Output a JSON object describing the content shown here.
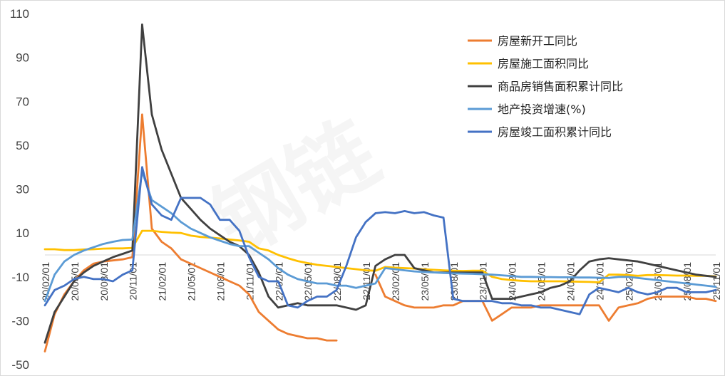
{
  "chart_data": {
    "type": "line",
    "title": "",
    "xlabel": "",
    "ylabel": "",
    "ylim": [
      -50,
      110
    ],
    "yticks": [
      -50,
      -30,
      -10,
      10,
      30,
      50,
      70,
      90,
      110
    ],
    "grid": false,
    "legend_position": "top-right",
    "x": [
      "20/02",
      "20/03",
      "20/04",
      "20/05",
      "20/06",
      "20/07",
      "20/08",
      "20/09",
      "20/10",
      "20/11",
      "20/12",
      "21/01",
      "21/02",
      "21/03",
      "21/04",
      "21/05",
      "21/06",
      "21/07",
      "21/08",
      "21/09",
      "21/10",
      "21/11",
      "21/12",
      "22/01",
      "22/02",
      "22/03",
      "22/04",
      "22/05",
      "22/06",
      "22/07",
      "22/08",
      "22/09",
      "22/10",
      "22/11",
      "22/12",
      "23/01",
      "23/02",
      "23/03",
      "23/04",
      "23/05",
      "23/06",
      "23/07",
      "23/08",
      "23/09",
      "23/10",
      "23/11",
      "23/12",
      "24/01",
      "24/02",
      "24/03",
      "24/04",
      "24/05",
      "24/06",
      "24/07",
      "24/08",
      "24/09",
      "24/10",
      "24/11",
      "24/12",
      "25/01",
      "25/02",
      "25/03",
      "25/04",
      "25/05",
      "25/06",
      "25/07",
      "25/08",
      "25/09",
      "25/10",
      "25/11"
    ],
    "x_tick_labels": [
      "20/02/01",
      "20/05/01",
      "20/08/01",
      "20/11/01",
      "21/02/01",
      "21/05/01",
      "21/08/01",
      "21/11/01",
      "22/02/01",
      "22/05/01",
      "22/08/01",
      "22/11/01",
      "23/02/01",
      "23/05/01",
      "23/08/01",
      "23/11/01",
      "24/02/01",
      "24/05/01",
      "24/08/01",
      "24/11/01",
      "25/02/01",
      "25/05/01",
      "25/08/01",
      "25/11/01"
    ],
    "series": [
      {
        "name": "房屋新开工同比",
        "color": "#ED7D31",
        "values": [
          -44,
          -27,
          -18,
          -12,
          -7,
          -4,
          -3,
          -2.5,
          -2,
          -1,
          64,
          12,
          6,
          3,
          -2,
          -4,
          -6,
          -8,
          -10,
          -12,
          -14,
          -18,
          -26,
          -30,
          -34,
          -36,
          -37,
          -38,
          -38,
          -39,
          -39,
          null,
          null,
          null,
          -9,
          -19,
          -21,
          -23,
          -24,
          -24,
          -24,
          -23,
          -23,
          -21,
          -21,
          -21,
          -30,
          -27,
          -24,
          -24,
          -24,
          -23,
          -23,
          -23,
          -23,
          -23,
          -23,
          -23,
          -30,
          -24,
          -23,
          -22,
          -20,
          -19,
          -19,
          -19,
          -19,
          -20,
          -20,
          -21
        ]
      },
      {
        "name": "房屋施工面积同比",
        "color": "#FFC000",
        "values": [
          2.6,
          2.6,
          2.2,
          2.2,
          2.5,
          2.6,
          2.9,
          3,
          3,
          3.2,
          11,
          11,
          10.5,
          10.2,
          10,
          8.8,
          8.2,
          7.9,
          7.5,
          7,
          6.6,
          6,
          3,
          2,
          0,
          -1.5,
          -2.8,
          -3.7,
          -4.5,
          -5,
          -5.5,
          -6,
          -6.5,
          -7,
          -7.2,
          -5.5,
          -5.8,
          -6,
          -6.2,
          -6.6,
          -6.8,
          -7,
          -7.2,
          -7.3,
          -7.2,
          -7.2,
          -10,
          -11,
          -11.5,
          -11.8,
          -12,
          -12,
          -12,
          -12,
          -12.1,
          -12.2,
          -12.3,
          -12.5,
          -9,
          -9,
          -9.2,
          -9.5,
          -9.2,
          -9.2,
          -9.3,
          -9.4,
          -9.4,
          -9.5,
          -9.5,
          -9.8
        ]
      },
      {
        "name": "商品房销售面积累计同比",
        "color": "#404040",
        "values": [
          -40,
          -26,
          -19,
          -12,
          -8,
          -5,
          -3,
          -1,
          0.5,
          2,
          105,
          64,
          48,
          37,
          26,
          21,
          16,
          12,
          9,
          6,
          4,
          0,
          -8,
          -19,
          -24,
          -23,
          -22,
          -23,
          -23,
          -23,
          -23,
          -24,
          -25,
          -23,
          -5,
          -2,
          0,
          0,
          -6,
          -7,
          -8,
          -8,
          -8,
          -8,
          -8,
          -8,
          -20,
          -20,
          -20,
          -19,
          -18,
          -17,
          -15,
          -14,
          -12,
          -7,
          -3,
          -2,
          -1.5,
          -2,
          -2.5,
          -3,
          -4,
          -5,
          -6,
          -7,
          -8,
          -9,
          -9.5,
          -10
        ]
      },
      {
        "name": "地产投资增速(%)",
        "color": "#5B9BD5",
        "values": [
          -21,
          -9,
          -3,
          0,
          2,
          3.5,
          5,
          6,
          6.8,
          7,
          38,
          25,
          22,
          19,
          15,
          12,
          10,
          8,
          6.5,
          5,
          4,
          4,
          1,
          -2,
          -6,
          -9,
          -11,
          -12,
          -13,
          -13,
          -14,
          -14,
          -15,
          -14,
          -13,
          -6,
          -6.5,
          -7,
          -7.5,
          -7.8,
          -8,
          -8.2,
          -8.4,
          -8.5,
          -8.6,
          -8.8,
          -9,
          -9.3,
          -9.6,
          -10,
          -10,
          -10.1,
          -10.1,
          -10.2,
          -10.2,
          -10.3,
          -10.3,
          -10.4,
          -10.5,
          -10,
          -10,
          -10.5,
          -11,
          -11.5,
          -12,
          -12.5,
          -13,
          -13.5,
          -14,
          -14.5
        ]
      },
      {
        "name": "房屋竣工面积累计同比",
        "color": "#4472C4",
        "values": [
          -23,
          -16,
          -14,
          -11,
          -10,
          -11,
          -11,
          -12,
          -9,
          -7,
          40,
          23,
          18,
          16,
          26,
          26,
          26,
          23,
          16,
          16,
          11,
          -1,
          -10,
          -12,
          -12,
          -23,
          -24,
          -21,
          -19,
          -19,
          -16,
          -5,
          8,
          15,
          19,
          19.5,
          19,
          20,
          19,
          19.5,
          18,
          17,
          -20,
          -21,
          -21,
          -21,
          -21,
          -22,
          -22,
          -23,
          -23,
          -24,
          -24,
          -25,
          -26,
          -27,
          -18,
          -15,
          -16,
          -17,
          -15,
          -17,
          -18,
          -17,
          -15,
          -15,
          -17,
          -17,
          -17,
          -16
        ]
      }
    ]
  }
}
